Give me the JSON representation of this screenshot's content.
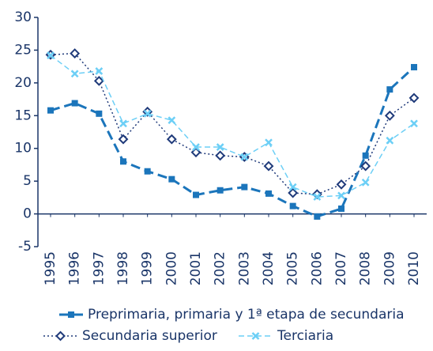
{
  "chart_data": {
    "type": "line",
    "categories": [
      "1995",
      "1996",
      "1997",
      "1998",
      "1999",
      "2000",
      "2001",
      "2002",
      "2003",
      "2004",
      "2005",
      "2006",
      "2007",
      "2008",
      "2009",
      "2010"
    ],
    "series": [
      {
        "name": "Preprimaria, primaria y 1ª etapa de secundaria",
        "color": "#1b75bb",
        "line_style": "dashed-thick",
        "marker": "square",
        "values": [
          15.8,
          16.9,
          15.3,
          8.0,
          6.5,
          5.3,
          2.9,
          3.6,
          4.1,
          3.1,
          1.2,
          -0.4,
          0.8,
          8.9,
          19.0,
          22.4
        ]
      },
      {
        "name": "Secundaria superior",
        "color": "#1f3a7a",
        "line_style": "dotted",
        "marker": "diamond",
        "values": [
          24.3,
          24.5,
          20.3,
          11.4,
          15.6,
          11.4,
          9.4,
          8.9,
          8.7,
          7.3,
          3.2,
          3.0,
          4.5,
          7.3,
          15.0,
          17.7
        ]
      },
      {
        "name": "Terciaria",
        "color": "#6ccff6",
        "line_style": "dashed-thin",
        "marker": "x",
        "values": [
          24.2,
          21.4,
          21.8,
          13.8,
          15.3,
          14.3,
          10.2,
          10.2,
          8.7,
          10.9,
          4.1,
          2.6,
          2.8,
          4.8,
          11.2,
          13.8
        ]
      }
    ],
    "ylim": [
      -5,
      30
    ],
    "yticks": [
      -5,
      0,
      5,
      10,
      15,
      20,
      25,
      30
    ],
    "grid": false
  }
}
